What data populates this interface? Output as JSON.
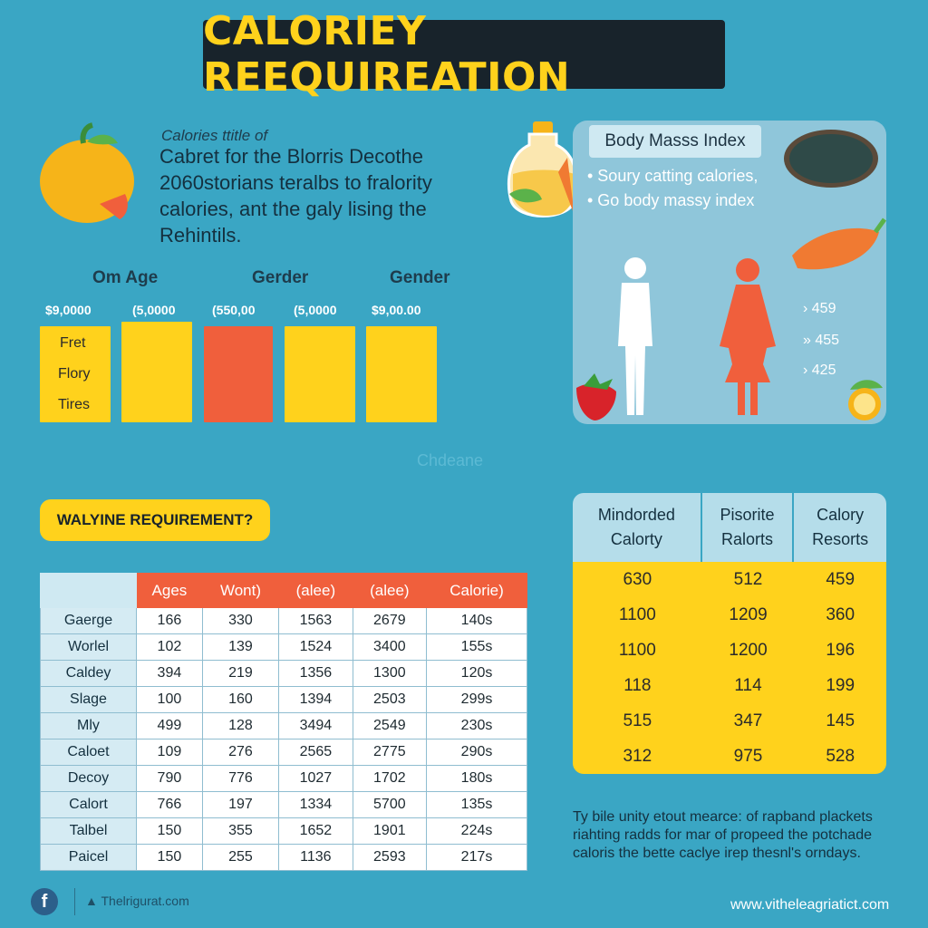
{
  "title": "CALORIEY REEQUIREATION",
  "intro": {
    "small": "Calories ttitle of",
    "lines": [
      "Cabret for the Blorris Decothe",
      "2060storians teralbs to fralority",
      "calories, ant the galy lising the",
      "Rehintils."
    ]
  },
  "bars": {
    "headers": [
      "Om Age",
      "Gerder",
      "Gender"
    ],
    "value_labels": [
      "$9,0000",
      "(5,0000",
      "(550,00",
      "(5,0000",
      "$9,00.00"
    ],
    "row_labels": [
      "Fret",
      "Flory",
      "Tires"
    ],
    "colors": [
      "#ffd21c",
      "#ffd21c",
      "#f05f3c",
      "#ffd21c",
      "#ffd21c"
    ]
  },
  "watermark": "Chdeane",
  "bmi": {
    "title": "Body Masss Index",
    "bullets": [
      "• Soury catting calories,",
      "• Go body massy index"
    ],
    "values": [
      "› 459",
      "» 455",
      "› 425"
    ]
  },
  "requirement_badge": "WALYINE REQUIREMENT?",
  "left_table": {
    "headers": [
      "Ages",
      "Wont)",
      "(alee)",
      "(alee)",
      "Calorie)"
    ],
    "rows": [
      {
        "name": "Gaerge",
        "cells": [
          "166",
          "330",
          "1563",
          "2679",
          "140s"
        ]
      },
      {
        "name": "Worlel",
        "cells": [
          "102",
          "139",
          "1524",
          "3400",
          "155s"
        ]
      },
      {
        "name": "Caldey",
        "cells": [
          "394",
          "219",
          "1356",
          "1300",
          "120s"
        ]
      },
      {
        "name": "Slage",
        "cells": [
          "100",
          "160",
          "1394",
          "2503",
          "299s"
        ]
      },
      {
        "name": "Mly",
        "cells": [
          "499",
          "128",
          "3494",
          "2549",
          "230s"
        ]
      },
      {
        "name": "Caloet",
        "cells": [
          "109",
          "276",
          "2565",
          "2775",
          "290s"
        ]
      },
      {
        "name": "Decoy",
        "cells": [
          "790",
          "776",
          "1027",
          "1702",
          "180s"
        ]
      },
      {
        "name": "Calort",
        "cells": [
          "766",
          "197",
          "1334",
          "5700",
          "135s"
        ]
      },
      {
        "name": "Talbel",
        "cells": [
          "150",
          "355",
          "1652",
          "1901",
          "224s"
        ]
      },
      {
        "name": "Paicel",
        "cells": [
          "150",
          "255",
          "1136",
          "2593",
          "217s"
        ]
      }
    ]
  },
  "right_table": {
    "headers": [
      [
        "Mindorded",
        "Calorty"
      ],
      [
        "Pisorite",
        "Ralorts"
      ],
      [
        "Calory",
        "Resorts"
      ]
    ],
    "rows": [
      [
        "630",
        "512",
        "459"
      ],
      [
        "1100",
        "1209",
        "360"
      ],
      [
        "1100",
        "1200",
        "196"
      ],
      [
        "118",
        "114",
        "199"
      ],
      [
        "515",
        "347",
        "145"
      ],
      [
        "312",
        "975",
        "528"
      ]
    ]
  },
  "footnote": [
    "Ty bile unity etout mearce: of rapband plackets",
    "riahting radds for mar of propeed the potchade",
    "caloris the bette caclye irep thesnl's orndays."
  ],
  "footer": {
    "social_handle": "Thelrigurat.com",
    "website": "www.vitheleagriatict.com"
  }
}
